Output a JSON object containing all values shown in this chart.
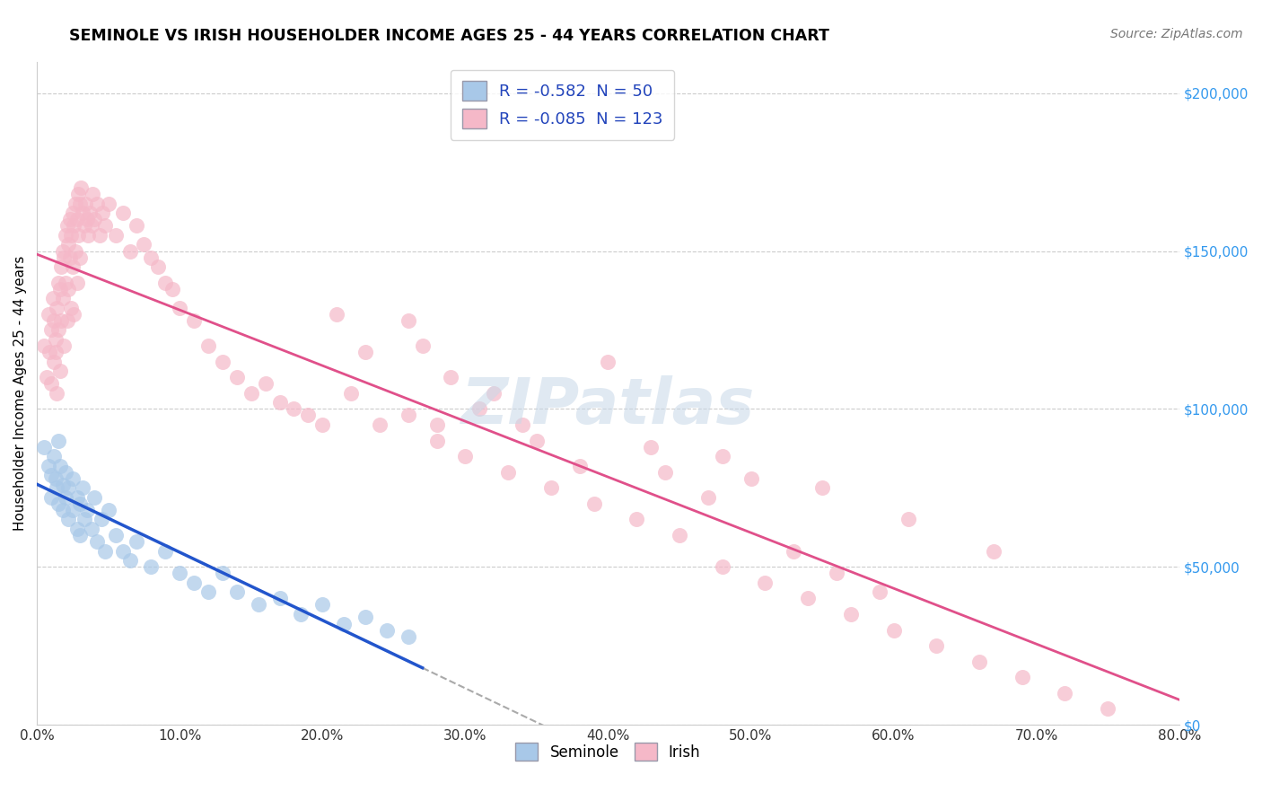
{
  "title": "SEMINOLE VS IRISH HOUSEHOLDER INCOME AGES 25 - 44 YEARS CORRELATION CHART",
  "source_text": "Source: ZipAtlas.com",
  "ylabel": "Householder Income Ages 25 - 44 years",
  "ytick_labels": [
    "$0",
    "$50,000",
    "$100,000",
    "$150,000",
    "$200,000"
  ],
  "ytick_values": [
    0,
    50000,
    100000,
    150000,
    200000
  ],
  "xlim": [
    0.0,
    0.8
  ],
  "ylim": [
    0,
    210000
  ],
  "seminole_R": -0.582,
  "seminole_N": 50,
  "irish_R": -0.085,
  "irish_N": 123,
  "seminole_color": "#a8c8e8",
  "irish_color": "#f5b8c8",
  "seminole_line_color": "#2255cc",
  "irish_line_color": "#e0508a",
  "legend_R_color": "#2244bb",
  "seminole_x": [
    0.005,
    0.008,
    0.01,
    0.01,
    0.012,
    0.013,
    0.014,
    0.015,
    0.015,
    0.016,
    0.018,
    0.018,
    0.02,
    0.02,
    0.022,
    0.022,
    0.025,
    0.025,
    0.028,
    0.028,
    0.03,
    0.03,
    0.032,
    0.033,
    0.035,
    0.038,
    0.04,
    0.042,
    0.045,
    0.048,
    0.05,
    0.055,
    0.06,
    0.065,
    0.07,
    0.08,
    0.09,
    0.1,
    0.11,
    0.12,
    0.13,
    0.14,
    0.155,
    0.17,
    0.185,
    0.2,
    0.215,
    0.23,
    0.245,
    0.26
  ],
  "seminole_y": [
    88000,
    82000,
    79000,
    72000,
    85000,
    78000,
    75000,
    90000,
    70000,
    82000,
    76000,
    68000,
    80000,
    72000,
    75000,
    65000,
    78000,
    68000,
    72000,
    62000,
    70000,
    60000,
    75000,
    65000,
    68000,
    62000,
    72000,
    58000,
    65000,
    55000,
    68000,
    60000,
    55000,
    52000,
    58000,
    50000,
    55000,
    48000,
    45000,
    42000,
    48000,
    42000,
    38000,
    40000,
    35000,
    38000,
    32000,
    34000,
    30000,
    28000
  ],
  "irish_x": [
    0.005,
    0.007,
    0.008,
    0.009,
    0.01,
    0.01,
    0.011,
    0.012,
    0.012,
    0.013,
    0.013,
    0.014,
    0.014,
    0.015,
    0.015,
    0.016,
    0.016,
    0.017,
    0.017,
    0.018,
    0.018,
    0.019,
    0.019,
    0.02,
    0.02,
    0.021,
    0.021,
    0.022,
    0.022,
    0.023,
    0.023,
    0.024,
    0.024,
    0.025,
    0.025,
    0.026,
    0.026,
    0.027,
    0.027,
    0.028,
    0.028,
    0.029,
    0.029,
    0.03,
    0.03,
    0.031,
    0.032,
    0.033,
    0.034,
    0.035,
    0.036,
    0.037,
    0.038,
    0.039,
    0.04,
    0.042,
    0.044,
    0.046,
    0.048,
    0.05,
    0.055,
    0.06,
    0.065,
    0.07,
    0.075,
    0.08,
    0.085,
    0.09,
    0.095,
    0.1,
    0.11,
    0.12,
    0.13,
    0.14,
    0.15,
    0.16,
    0.17,
    0.18,
    0.19,
    0.2,
    0.22,
    0.24,
    0.26,
    0.28,
    0.3,
    0.33,
    0.36,
    0.39,
    0.42,
    0.45,
    0.48,
    0.51,
    0.54,
    0.57,
    0.6,
    0.63,
    0.66,
    0.69,
    0.72,
    0.75,
    0.53,
    0.56,
    0.59,
    0.44,
    0.47,
    0.35,
    0.38,
    0.31,
    0.34,
    0.27,
    0.29,
    0.26,
    0.4,
    0.43,
    0.5,
    0.21,
    0.23,
    0.32,
    0.28,
    0.48,
    0.55,
    0.61,
    0.67
  ],
  "irish_y": [
    120000,
    110000,
    130000,
    118000,
    125000,
    108000,
    135000,
    115000,
    128000,
    122000,
    118000,
    132000,
    105000,
    140000,
    125000,
    138000,
    112000,
    145000,
    128000,
    150000,
    135000,
    148000,
    120000,
    155000,
    140000,
    158000,
    128000,
    152000,
    138000,
    160000,
    148000,
    155000,
    132000,
    162000,
    145000,
    158000,
    130000,
    165000,
    150000,
    160000,
    140000,
    168000,
    155000,
    165000,
    148000,
    170000,
    162000,
    158000,
    165000,
    160000,
    155000,
    162000,
    158000,
    168000,
    160000,
    165000,
    155000,
    162000,
    158000,
    165000,
    155000,
    162000,
    150000,
    158000,
    152000,
    148000,
    145000,
    140000,
    138000,
    132000,
    128000,
    120000,
    115000,
    110000,
    105000,
    108000,
    102000,
    100000,
    98000,
    95000,
    105000,
    95000,
    98000,
    90000,
    85000,
    80000,
    75000,
    70000,
    65000,
    60000,
    50000,
    45000,
    40000,
    35000,
    30000,
    25000,
    20000,
    15000,
    10000,
    5000,
    55000,
    48000,
    42000,
    80000,
    72000,
    90000,
    82000,
    100000,
    95000,
    120000,
    110000,
    128000,
    115000,
    88000,
    78000,
    130000,
    118000,
    105000,
    95000,
    85000,
    75000,
    65000,
    55000
  ]
}
